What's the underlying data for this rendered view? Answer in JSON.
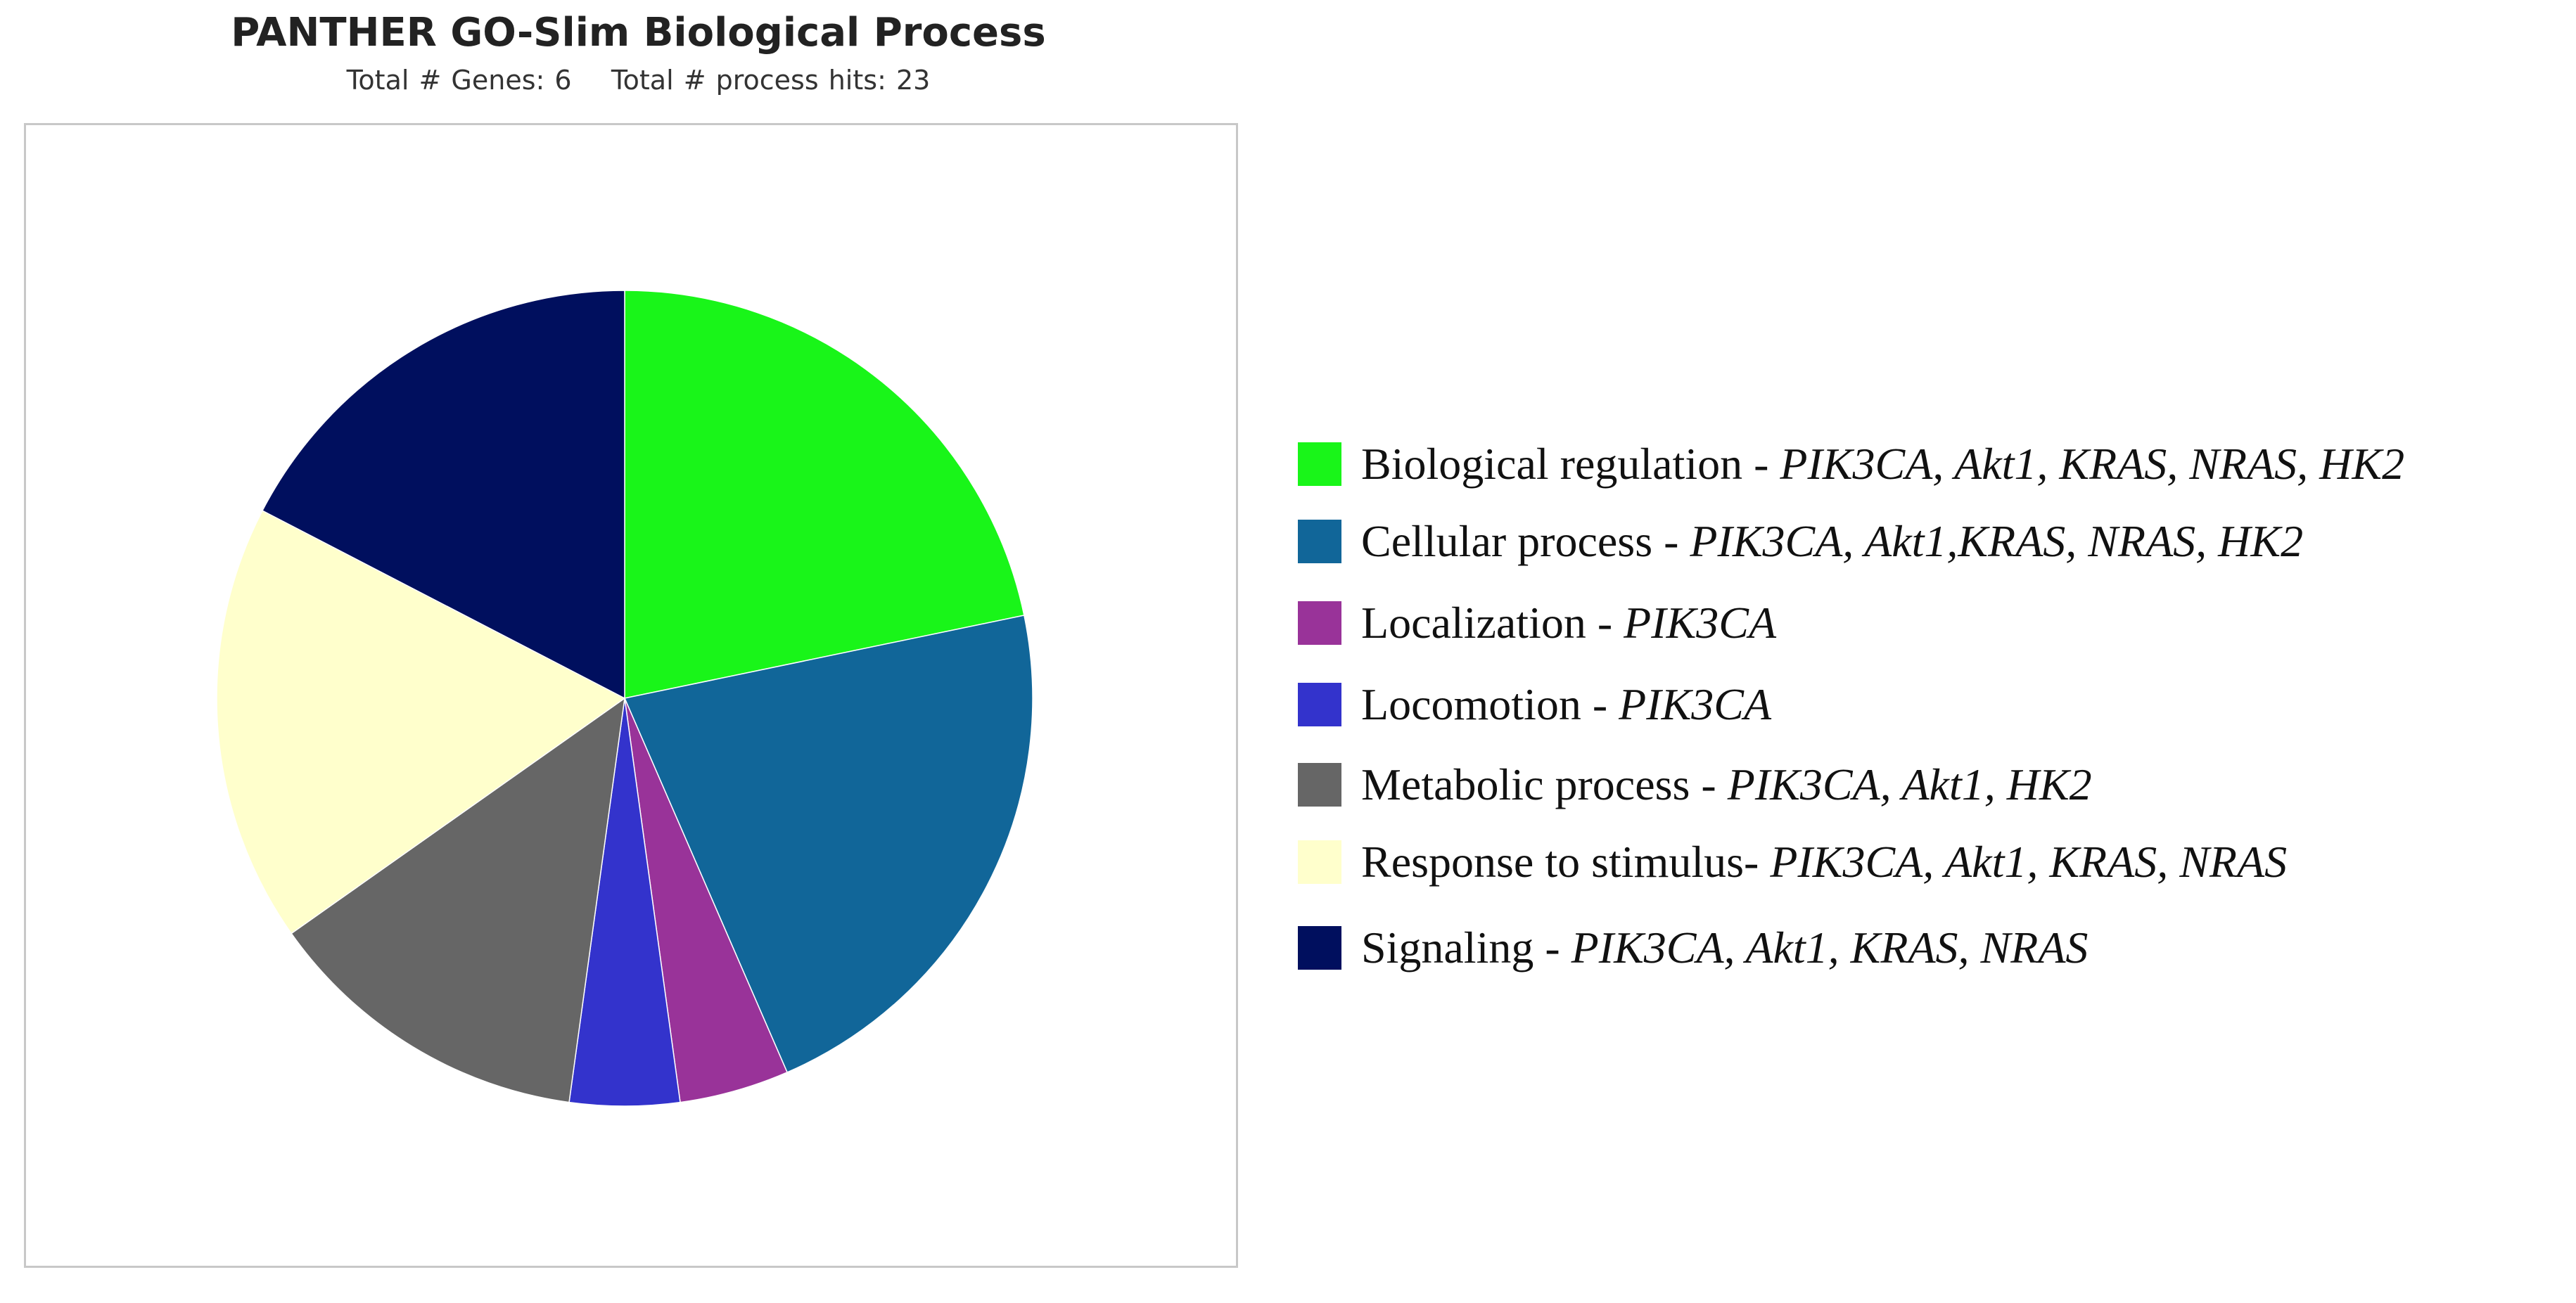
{
  "chart_data": {
    "type": "pie",
    "title": "PANTHER GO-Slim Biological Process",
    "subtitle": "Total # Genes: 6    Total # process hits: 23",
    "slices": [
      {
        "label": "Biological regulation",
        "separator": " - ",
        "genes": "PIK3CA, Akt1, KRAS, NRAS, HK2",
        "value": 5,
        "color": "#19f519"
      },
      {
        "label": "Cellular process",
        "separator": " - ",
        "genes": "PIK3CA, Akt1,KRAS, NRAS, HK2",
        "value": 5,
        "color": "#116699"
      },
      {
        "label": "Localization",
        "separator": " - ",
        "genes": "PIK3CA",
        "value": 1,
        "color": "#993399"
      },
      {
        "label": "Locomotion",
        "separator": " - ",
        "genes": "PIK3CA",
        "value": 1,
        "color": "#3333cc"
      },
      {
        "label": "Metabolic process",
        "separator": " - ",
        "genes": "PIK3CA, Akt1, HK2",
        "value": 3,
        "color": "#666666"
      },
      {
        "label": "Response to stimulus",
        "separator": "- ",
        "genes": "PIK3CA, Akt1, KRAS, NRAS",
        "value": 4,
        "color": "#ffffcc"
      },
      {
        "label": "Signaling",
        "separator": " - ",
        "genes": "PIK3CA, Akt1, KRAS, NRAS",
        "value": 4,
        "color": "#000f5e"
      }
    ],
    "start_angle_deg": 0,
    "direction": "clockwise",
    "legend_position": "right"
  }
}
